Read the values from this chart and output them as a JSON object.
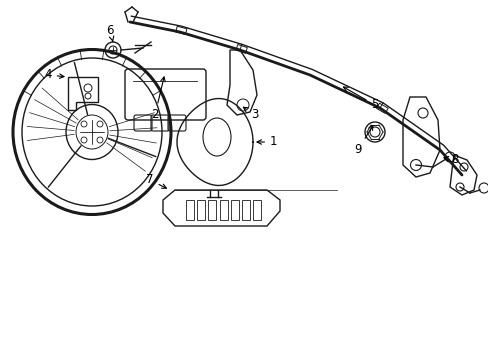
{
  "background_color": "#ffffff",
  "line_color": "#1a1a1a",
  "figsize": [
    4.89,
    3.6
  ],
  "dpi": 100,
  "label_fontsize": 8.5,
  "xlim": [
    0,
    489
  ],
  "ylim": [
    0,
    360
  ]
}
